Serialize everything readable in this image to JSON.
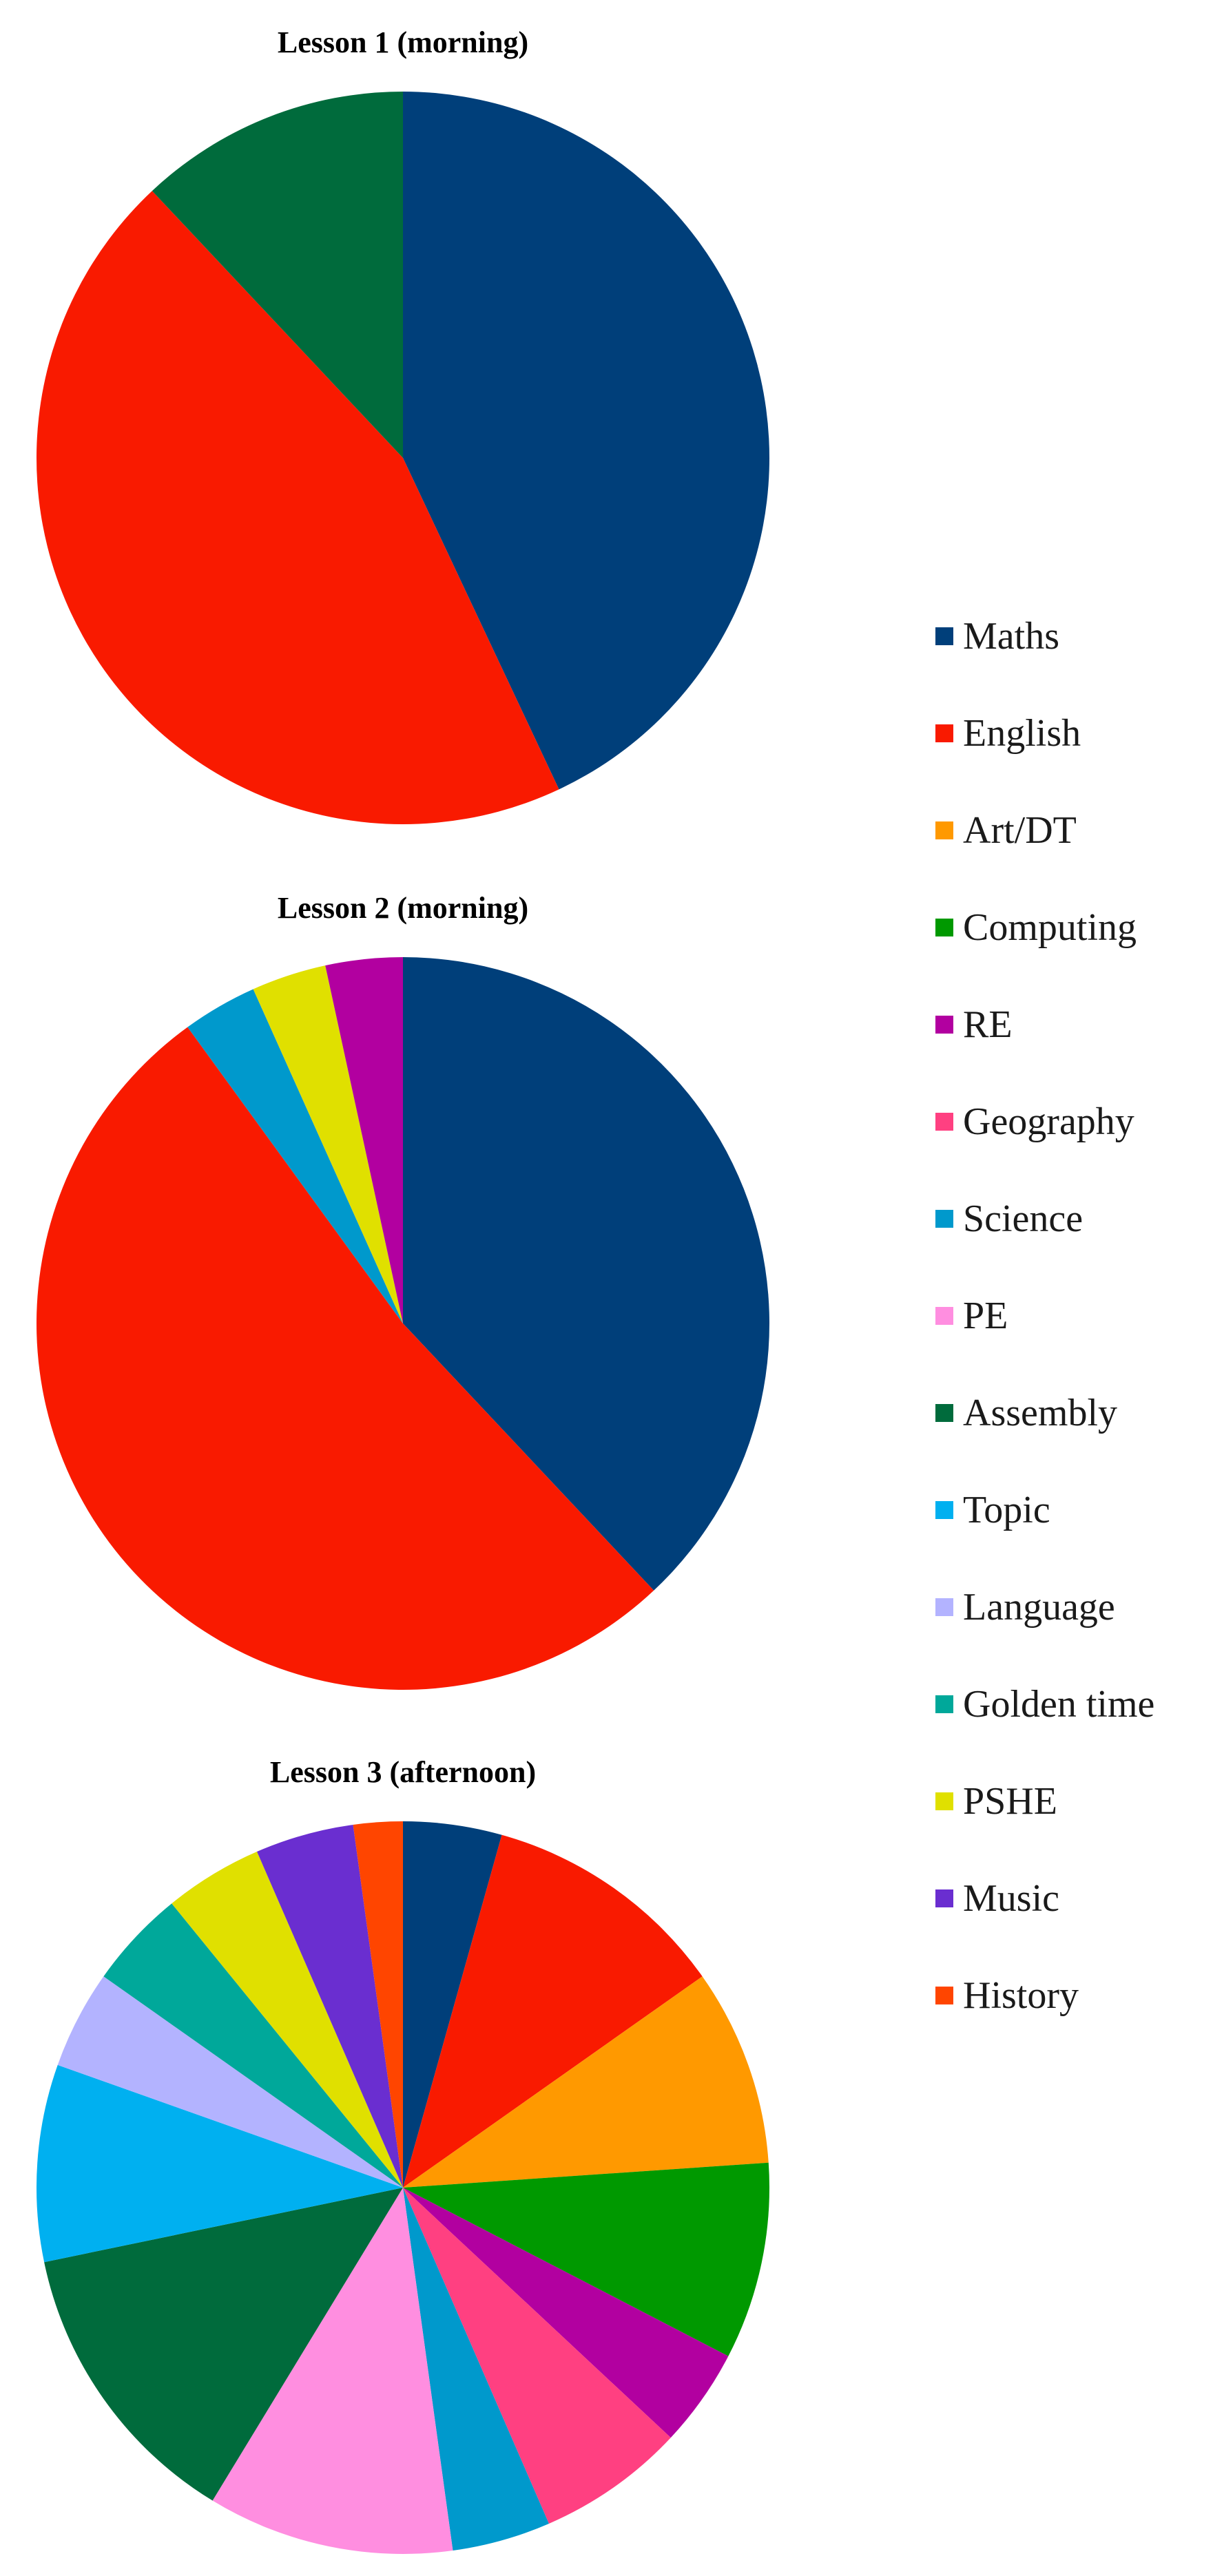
{
  "legend": [
    {
      "name": "Maths",
      "color": "#003f7a"
    },
    {
      "name": "English",
      "color": "#f91a00"
    },
    {
      "name": "Art/DT",
      "color": "#ff9900"
    },
    {
      "name": "Computing",
      "color": "#009900"
    },
    {
      "name": "RE",
      "color": "#b200a0"
    },
    {
      "name": "Geography",
      "color": "#ff4081"
    },
    {
      "name": "Science",
      "color": "#0099cc"
    },
    {
      "name": "PE",
      "color": "#ff8ee0"
    },
    {
      "name": "Assembly",
      "color": "#006b3c"
    },
    {
      "name": "Topic",
      "color": "#00b0f0"
    },
    {
      "name": "Language",
      "color": "#b3b3ff"
    },
    {
      "name": "Golden time",
      "color": "#00a89a"
    },
    {
      "name": "PSHE",
      "color": "#e0e000"
    },
    {
      "name": "Music",
      "color": "#6a2ed0"
    },
    {
      "name": "History",
      "color": "#ff4500"
    }
  ],
  "chart_data": [
    {
      "type": "pie",
      "title": "Lesson 1  (morning)",
      "slices": [
        {
          "label": "Maths",
          "value": 43
        },
        {
          "label": "English",
          "value": 45
        },
        {
          "label": "Assembly",
          "value": 12
        }
      ]
    },
    {
      "type": "pie",
      "title": "Lesson 2 (morning)",
      "slices": [
        {
          "label": "Maths",
          "value": 38
        },
        {
          "label": "English",
          "value": 52
        },
        {
          "label": "Science",
          "value": 3.3
        },
        {
          "label": "PSHE",
          "value": 3.3
        },
        {
          "label": "RE",
          "value": 3.4
        }
      ]
    },
    {
      "type": "pie",
      "title": "Lesson 3 (afternoon)",
      "slices": [
        {
          "label": "Maths",
          "value": 4
        },
        {
          "label": "English",
          "value": 10
        },
        {
          "label": "Art/DT",
          "value": 8
        },
        {
          "label": "Computing",
          "value": 8
        },
        {
          "label": "RE",
          "value": 4
        },
        {
          "label": "Geography",
          "value": 6
        },
        {
          "label": "Science",
          "value": 4
        },
        {
          "label": "PE",
          "value": 10
        },
        {
          "label": "Assembly",
          "value": 12
        },
        {
          "label": "Topic",
          "value": 8
        },
        {
          "label": "Language",
          "value": 4
        },
        {
          "label": "Golden time",
          "value": 4
        },
        {
          "label": "PSHE",
          "value": 4
        },
        {
          "label": "Music",
          "value": 4
        },
        {
          "label": "History",
          "value": 2
        }
      ]
    }
  ]
}
